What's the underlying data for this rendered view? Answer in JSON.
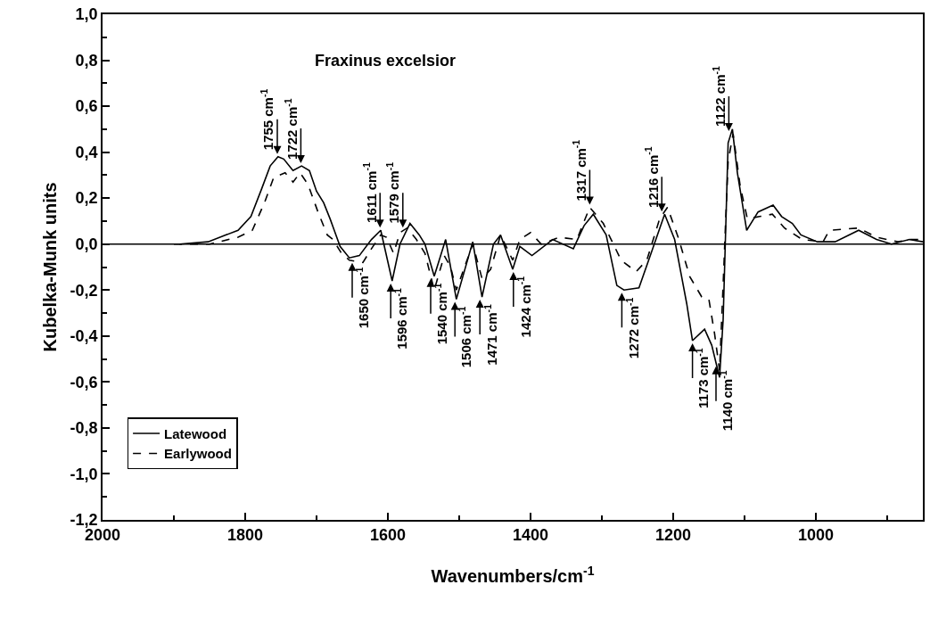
{
  "chart_data": {
    "type": "line",
    "title": "Fraxinus excelsior",
    "xlabel": "Wavenumbers/cm$^{-1}$",
    "ylabel": "Kubelka-Munk units",
    "xlim": [
      2000,
      850
    ],
    "ylim": [
      -1.2,
      1.0
    ],
    "xticks": [
      2000,
      {
        "value": 1900,
        "label": null
      },
      1800,
      {
        "value": 1700,
        "label": null
      },
      1600,
      {
        "value": 1500,
        "label": null
      },
      1400,
      {
        "value": 1300,
        "label": null
      },
      1200,
      {
        "value": 1100,
        "label": null
      },
      1000,
      {
        "value": 900,
        "label": null
      }
    ],
    "yticks": [
      {
        "value": -1.2,
        "label": "-1,2"
      },
      {
        "value": -1.1,
        "label": null
      },
      {
        "value": -1.0,
        "label": "-1,0"
      },
      {
        "value": -0.9,
        "label": null
      },
      {
        "value": -0.8,
        "label": "-0,8"
      },
      {
        "value": -0.7,
        "label": null
      },
      {
        "value": -0.6,
        "label": "-0,6"
      },
      {
        "value": -0.5,
        "label": null
      },
      {
        "value": -0.4,
        "label": "-0,4"
      },
      {
        "value": -0.3,
        "label": null
      },
      {
        "value": -0.2,
        "label": "-0,2"
      },
      {
        "value": -0.1,
        "label": null
      },
      {
        "value": 0,
        "label": "0,0"
      },
      {
        "value": 0.1,
        "label": null
      },
      {
        "value": 0.2,
        "label": "0,2"
      },
      {
        "value": 0.3,
        "label": null
      },
      {
        "value": 0.4,
        "label": "0,4"
      },
      {
        "value": 0.5,
        "label": null
      },
      {
        "value": 0.6,
        "label": "0,6"
      },
      {
        "value": 0.7,
        "label": null
      },
      {
        "value": 0.8,
        "label": "0,8"
      },
      {
        "value": 0.9,
        "label": null
      },
      {
        "value": 1.0,
        "label": "1,0"
      }
    ],
    "grid": false,
    "legend": "bottom left",
    "marker": "none",
    "ref_lines": [
      {
        "axis": "y",
        "value": 0,
        "color": "#000000",
        "line_style": "solid"
      }
    ],
    "series": [
      {
        "name": "Latewood",
        "color": "#000000",
        "line_style": "solid",
        "x": [
          1892,
          1852,
          1810,
          1792,
          1777,
          1765,
          1754,
          1746,
          1733,
          1721,
          1710,
          1700,
          1690,
          1681,
          1667,
          1654,
          1640,
          1623,
          1610,
          1594,
          1583,
          1569,
          1556,
          1548,
          1535,
          1519,
          1504,
          1481,
          1468,
          1452,
          1442,
          1425,
          1415,
          1398,
          1369,
          1340,
          1325,
          1312,
          1294,
          1279,
          1269,
          1248,
          1231,
          1212,
          1198,
          1181,
          1173,
          1156,
          1146,
          1135,
          1130,
          1127,
          1123,
          1117,
          1110,
          1097,
          1081,
          1060,
          1048,
          1033,
          1021,
          998,
          973,
          940,
          915,
          894,
          869,
          850
        ],
        "values": [
          0.0,
          0.01,
          0.06,
          0.12,
          0.24,
          0.34,
          0.38,
          0.37,
          0.32,
          0.34,
          0.32,
          0.23,
          0.18,
          0.11,
          -0.01,
          -0.06,
          -0.05,
          0.02,
          0.06,
          -0.16,
          0.0,
          0.09,
          0.04,
          0.0,
          -0.14,
          0.02,
          -0.24,
          0.01,
          -0.23,
          0.0,
          0.04,
          -0.11,
          -0.01,
          -0.05,
          0.02,
          -0.02,
          0.08,
          0.13,
          0.04,
          -0.18,
          -0.2,
          -0.19,
          -0.04,
          0.13,
          0.02,
          -0.26,
          -0.42,
          -0.37,
          -0.44,
          -0.58,
          -0.33,
          0.0,
          0.44,
          0.5,
          0.31,
          0.06,
          0.14,
          0.17,
          0.12,
          0.09,
          0.04,
          0.01,
          0.01,
          0.06,
          0.02,
          0.0,
          0.02,
          0.01
        ]
      },
      {
        "name": "Earlywood",
        "color": "#000000",
        "line_style": "dashed",
        "x": [
          1900,
          1850,
          1810,
          1790,
          1773,
          1760,
          1744,
          1733,
          1723,
          1712,
          1698,
          1685,
          1677,
          1665,
          1654,
          1635,
          1623,
          1610,
          1602,
          1592,
          1583,
          1573,
          1560,
          1548,
          1535,
          1521,
          1512,
          1504,
          1481,
          1468,
          1456,
          1442,
          1425,
          1415,
          1400,
          1385,
          1360,
          1335,
          1317,
          1298,
          1273,
          1252,
          1237,
          1219,
          1208,
          1192,
          1177,
          1160,
          1150,
          1142,
          1135,
          1129,
          1127,
          1123,
          1116,
          1106,
          1096,
          1079,
          1061,
          1044,
          1019,
          990,
          981,
          940,
          915,
          885,
          869,
          850
        ],
        "values": [
          0.0,
          0.0,
          0.03,
          0.06,
          0.18,
          0.29,
          0.31,
          0.27,
          0.31,
          0.26,
          0.14,
          0.04,
          0.02,
          -0.04,
          -0.07,
          -0.08,
          -0.02,
          0.04,
          0.03,
          -0.04,
          0.05,
          0.07,
          0.02,
          -0.04,
          -0.2,
          -0.05,
          -0.1,
          -0.2,
          0.0,
          -0.15,
          -0.11,
          0.04,
          -0.07,
          0.02,
          0.05,
          0.0,
          0.03,
          0.02,
          0.16,
          0.09,
          -0.07,
          -0.12,
          -0.07,
          0.11,
          0.16,
          0.02,
          -0.14,
          -0.23,
          -0.24,
          -0.39,
          -0.55,
          -0.1,
          0.06,
          0.36,
          0.48,
          0.25,
          0.11,
          0.12,
          0.13,
          0.07,
          0.02,
          0.01,
          0.06,
          0.07,
          0.03,
          0.01,
          0.02,
          0.02
        ]
      }
    ],
    "annotations": [
      {
        "text": "1755 cm$^{-1}$",
        "x": 1755,
        "y": 0.38
      },
      {
        "text": "1722 cm$^{-1}$",
        "x": 1722,
        "y": 0.34
      },
      {
        "text": "1611 cm$^{-1}$",
        "x": 1611,
        "y": 0.06
      },
      {
        "text": "1579 cm$^{-1}$",
        "x": 1579,
        "y": 0.06
      },
      {
        "text": "1317 cm$^{-1}$",
        "x": 1317,
        "y": 0.16
      },
      {
        "text": "1216 cm$^{-1}$",
        "x": 1216,
        "y": 0.13
      },
      {
        "text": "1122 cm$^{-1}$",
        "x": 1122,
        "y": 0.48
      },
      {
        "text": "1650 cm$^{-1}$",
        "x": 1650,
        "y": -0.07
      },
      {
        "text": "1596 cm$^{-1}$",
        "x": 1596,
        "y": -0.16
      },
      {
        "text": "1540 cm$^{-1}$",
        "x": 1540,
        "y": -0.14
      },
      {
        "text": "1506 cm$^{-1}$",
        "x": 1506,
        "y": -0.24
      },
      {
        "text": "1471 cm$^{-1}$",
        "x": 1471,
        "y": -0.23
      },
      {
        "text": "1424 cm$^{-1}$",
        "x": 1424,
        "y": -0.11
      },
      {
        "text": "1272 cm$^{-1}$",
        "x": 1272,
        "y": -0.2
      },
      {
        "text": "1173 cm$^{-1}$",
        "x": 1173,
        "y": -0.42
      },
      {
        "text": "1140 cm$^{-1}$",
        "x": 1140,
        "y": -0.52
      }
    ]
  }
}
